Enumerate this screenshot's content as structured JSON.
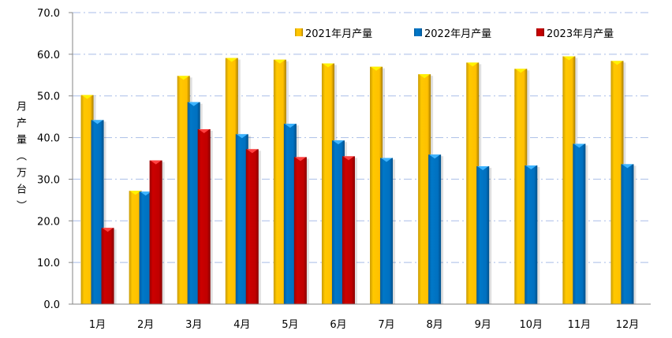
{
  "chart_data": {
    "type": "bar",
    "title": "",
    "xlabel": "",
    "ylabel": "月产量（万台）",
    "ylim": [
      0,
      70
    ],
    "ytick_step": 10,
    "ytick_labels": [
      "0.0",
      "10.0",
      "20.0",
      "30.0",
      "40.0",
      "50.0",
      "60.0",
      "70.0"
    ],
    "grid": "horizontal dash-dot",
    "legend_position": "top-right",
    "categories": [
      "1月",
      "2月",
      "3月",
      "4月",
      "5月",
      "6月",
      "7月",
      "8月",
      "9月",
      "10月",
      "11月",
      "12月"
    ],
    "series": [
      {
        "name": "2021年月产量",
        "color": "#FFC000",
        "values": [
          50.2,
          27.2,
          54.8,
          59.1,
          58.7,
          57.8,
          57.0,
          55.2,
          58.0,
          56.5,
          59.5,
          58.4
        ]
      },
      {
        "name": "2022年月产量",
        "color": "#0070C0",
        "values": [
          44.2,
          27.0,
          48.5,
          40.8,
          43.3,
          39.3,
          35.1,
          35.9,
          33.1,
          33.3,
          38.5,
          33.6
        ]
      },
      {
        "name": "2023年月产量",
        "color": "#C00000",
        "values": [
          18.3,
          34.5,
          42.0,
          37.2,
          35.3,
          35.5,
          null,
          null,
          null,
          null,
          null,
          null
        ]
      }
    ]
  }
}
